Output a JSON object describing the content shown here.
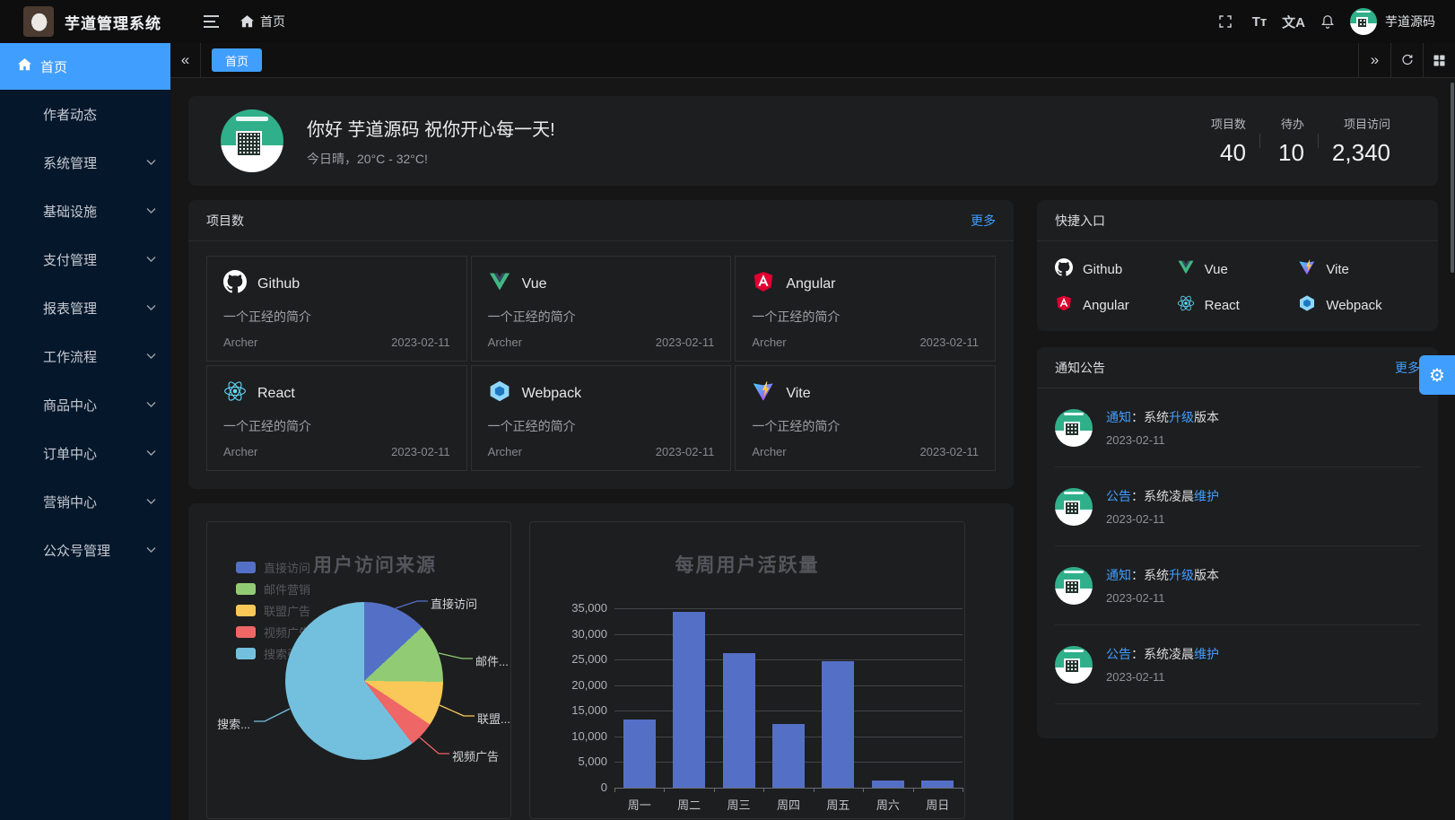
{
  "app": {
    "title": "芋道管理系统",
    "user_name": "芋道源码"
  },
  "topbar": {
    "breadcrumb_home": "首页",
    "icons": [
      "hamburger-icon",
      "home-icon",
      "fullscreen-icon",
      "font-size-icon",
      "language-icon",
      "bell-icon"
    ],
    "font_size_glyph": "Tт",
    "language_glyph": "文A"
  },
  "tabs": {
    "items": [
      {
        "label": "首页",
        "active": true
      }
    ]
  },
  "sidebar": {
    "items": [
      {
        "id": "home",
        "label": "首页",
        "active": true,
        "icon": "home-icon",
        "has_children": false
      },
      {
        "id": "author",
        "label": "作者动态",
        "active": false,
        "has_children": false
      },
      {
        "id": "system",
        "label": "系统管理",
        "active": false,
        "has_children": true
      },
      {
        "id": "infra",
        "label": "基础设施",
        "active": false,
        "has_children": true
      },
      {
        "id": "pay",
        "label": "支付管理",
        "active": false,
        "has_children": true
      },
      {
        "id": "report",
        "label": "报表管理",
        "active": false,
        "has_children": true
      },
      {
        "id": "workflow",
        "label": "工作流程",
        "active": false,
        "has_children": true
      },
      {
        "id": "product",
        "label": "商品中心",
        "active": false,
        "has_children": true
      },
      {
        "id": "order",
        "label": "订单中心",
        "active": false,
        "has_children": true
      },
      {
        "id": "marketing",
        "label": "营销中心",
        "active": false,
        "has_children": true
      },
      {
        "id": "mp",
        "label": "公众号管理",
        "active": false,
        "has_children": true
      }
    ]
  },
  "welcome": {
    "greeting": "你好 芋道源码 祝你开心每一天!",
    "weather": "今日晴，20°C - 32°C!",
    "stats": [
      {
        "label": "项目数",
        "value": "40"
      },
      {
        "label": "待办",
        "value": "10"
      },
      {
        "label": "项目访问",
        "value": "2,340"
      }
    ]
  },
  "projects": {
    "title": "项目数",
    "more_label": "更多",
    "items": [
      {
        "name": "Github",
        "icon": "github-icon",
        "desc": "一个正经的简介",
        "author": "Archer",
        "date": "2023-02-11"
      },
      {
        "name": "Vue",
        "icon": "vue-icon",
        "desc": "一个正经的简介",
        "author": "Archer",
        "date": "2023-02-11"
      },
      {
        "name": "Angular",
        "icon": "angular-icon",
        "desc": "一个正经的简介",
        "author": "Archer",
        "date": "2023-02-11"
      },
      {
        "name": "React",
        "icon": "react-icon",
        "desc": "一个正经的简介",
        "author": "Archer",
        "date": "2023-02-11"
      },
      {
        "name": "Webpack",
        "icon": "webpack-icon",
        "desc": "一个正经的简介",
        "author": "Archer",
        "date": "2023-02-11"
      },
      {
        "name": "Vite",
        "icon": "vite-icon",
        "desc": "一个正经的简介",
        "author": "Archer",
        "date": "2023-02-11"
      }
    ]
  },
  "shortcuts": {
    "title": "快捷入口",
    "items": [
      {
        "name": "Github",
        "icon": "github-icon"
      },
      {
        "name": "Vue",
        "icon": "vue-icon"
      },
      {
        "name": "Vite",
        "icon": "vite-icon"
      },
      {
        "name": "Angular",
        "icon": "angular-icon"
      },
      {
        "name": "React",
        "icon": "react-icon"
      },
      {
        "name": "Webpack",
        "icon": "webpack-icon"
      }
    ]
  },
  "notices": {
    "title": "通知公告",
    "more_label": "更多",
    "items": [
      {
        "segments": [
          {
            "text": "通知",
            "highlight": true
          },
          {
            "text": "：系统"
          },
          {
            "text": "升级",
            "highlight": true
          },
          {
            "text": "版本"
          }
        ],
        "date": "2023-02-11"
      },
      {
        "segments": [
          {
            "text": "公告",
            "highlight": true
          },
          {
            "text": "：系统凌晨"
          },
          {
            "text": "维护",
            "highlight": true
          }
        ],
        "date": "2023-02-11"
      },
      {
        "segments": [
          {
            "text": "通知",
            "highlight": true
          },
          {
            "text": "：系统"
          },
          {
            "text": "升级",
            "highlight": true
          },
          {
            "text": "版本"
          }
        ],
        "date": "2023-02-11"
      },
      {
        "segments": [
          {
            "text": "公告",
            "highlight": true
          },
          {
            "text": "：系统凌晨"
          },
          {
            "text": "维护",
            "highlight": true
          }
        ],
        "date": "2023-02-11"
      }
    ]
  },
  "chart_data": [
    {
      "type": "pie",
      "title": "用户访问来源",
      "legend_position": "left",
      "labels": [
        "直接访问",
        "邮件营销",
        "联盟广告",
        "视频广告",
        "搜索引擎"
      ],
      "values": [
        335,
        310,
        234,
        135,
        1548
      ],
      "callout_labels": [
        "直接访问",
        "邮件...",
        "联盟...",
        "视频广告",
        "搜索..."
      ],
      "colors": [
        "#5470c6",
        "#91cc75",
        "#fac858",
        "#ee6666",
        "#73c0de"
      ]
    },
    {
      "type": "bar",
      "title": "每周用户活跃量",
      "categories": [
        "周一",
        "周二",
        "周三",
        "周四",
        "周五",
        "周六",
        "周日"
      ],
      "values": [
        13253,
        34235,
        26321,
        12340,
        24643,
        1322,
        1324
      ],
      "ylim": [
        0,
        35000
      ],
      "ytick_step": 5000,
      "bar_color": "#5470c6",
      "grid": true
    }
  ],
  "colors": {
    "accent": "#409eff",
    "sidebar_bg": "#05172b",
    "panel_bg": "#1d1e1f",
    "page_bg": "#161617",
    "avatar_green": "#2fb08a"
  }
}
